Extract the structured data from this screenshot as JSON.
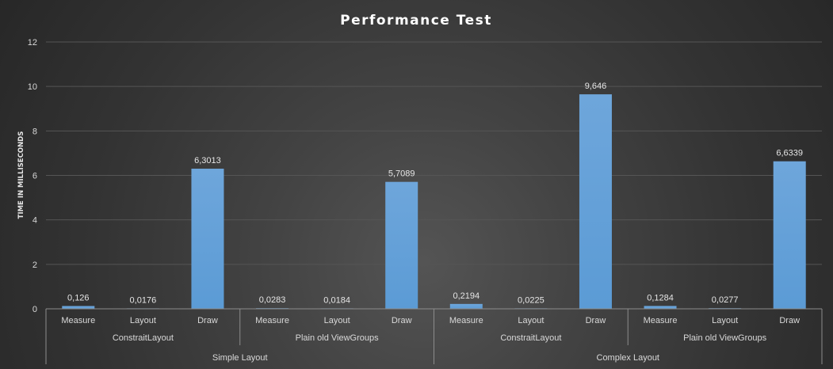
{
  "chart_data": {
    "type": "bar",
    "title": "Performance  Test",
    "ylabel": "TIME IN MILLISECONDS",
    "xlabel": "",
    "ylim": [
      0,
      12
    ],
    "yticks": [
      "0",
      "2",
      "4",
      "6",
      "8",
      "10",
      "12"
    ],
    "grid": true,
    "bar_color": "#5b9bd5",
    "categories": [
      "Measure",
      "Layout",
      "Draw",
      "Measure",
      "Layout",
      "Draw",
      "Measure",
      "Layout",
      "Draw",
      "Measure",
      "Layout",
      "Draw"
    ],
    "values": [
      0.126,
      0.0176,
      6.3013,
      0.0283,
      0.0184,
      5.7089,
      0.2194,
      0.0225,
      9.646,
      0.1284,
      0.0277,
      6.6339
    ],
    "data_labels": [
      "0,126",
      "0,0176",
      "6,3013",
      "0,0283",
      "0,0184",
      "5,7089",
      "0,2194",
      "0,0225",
      "9,646",
      "0,1284",
      "0,0277",
      "6,6339"
    ],
    "groups_level1": [
      "ConstraitLayout",
      "Plain old ViewGroups",
      "ConstraitLayout",
      "Plain old ViewGroups"
    ],
    "groups_level2": [
      "Simple Layout",
      "Complex Layout"
    ]
  }
}
